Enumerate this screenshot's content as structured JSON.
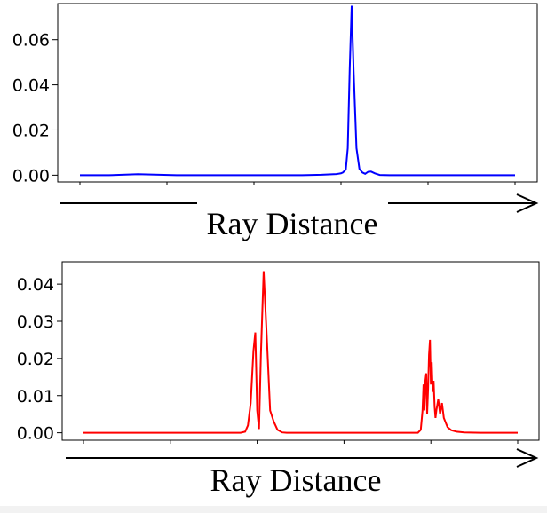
{
  "chart_data": [
    {
      "type": "line",
      "xlabel": "Ray Distance",
      "ylabel": "",
      "x_ticks_labeled": false,
      "ylim": [
        -0.003,
        0.076
      ],
      "y_ticks": [
        "0.00",
        "0.02",
        "0.04",
        "0.06"
      ],
      "series": [
        {
          "color": "#0000ff",
          "x": [
            0,
            30,
            60,
            100,
            150,
            200,
            230,
            250,
            265,
            270,
            272,
            275,
            277,
            279,
            281,
            283,
            286,
            289,
            292,
            295,
            298,
            301,
            305,
            310,
            320,
            340,
            380,
            420,
            450
          ],
          "values": [
            0.0,
            0.0,
            0.0004,
            0.0,
            0.0,
            0.0,
            0.0,
            0.0002,
            0.0005,
            0.0008,
            0.0012,
            0.0025,
            0.012,
            0.047,
            0.075,
            0.046,
            0.012,
            0.0028,
            0.0012,
            0.0006,
            0.0015,
            0.0016,
            0.0008,
            0.0001,
            0.0,
            0.0,
            0.0,
            0.0,
            0.0
          ]
        }
      ]
    },
    {
      "type": "line",
      "xlabel": "Ray Distance",
      "ylabel": "",
      "x_ticks_labeled": false,
      "ylim": [
        -0.002,
        0.046
      ],
      "y_ticks": [
        "0.00",
        "0.01",
        "0.02",
        "0.03",
        "0.04"
      ],
      "series": [
        {
          "color": "#ff0000",
          "x": [
            0,
            50,
            100,
            150,
            170,
            175,
            178,
            181,
            184,
            186,
            188,
            190,
            192,
            195,
            198,
            202,
            206,
            210,
            215,
            220,
            250,
            280,
            310,
            340,
            362,
            365,
            367,
            368,
            369,
            370,
            371,
            372,
            373,
            374,
            375,
            376,
            377,
            378,
            379,
            380,
            381,
            382,
            384,
            386,
            388,
            390,
            394,
            398,
            404,
            412,
            430,
            470
          ],
          "values": [
            0.0,
            0.0,
            0.0,
            0.0,
            0.0,
            0.0003,
            0.002,
            0.008,
            0.022,
            0.027,
            0.006,
            0.001,
            0.021,
            0.0435,
            0.028,
            0.006,
            0.003,
            0.0008,
            0.0001,
            0.0,
            0.0,
            0.0,
            0.0,
            0.0,
            0.0,
            0.0008,
            0.006,
            0.013,
            0.006,
            0.014,
            0.016,
            0.005,
            0.012,
            0.021,
            0.025,
            0.013,
            0.019,
            0.011,
            0.014,
            0.007,
            0.004,
            0.006,
            0.009,
            0.005,
            0.008,
            0.004,
            0.0015,
            0.0007,
            0.0003,
            0.0001,
            0.0,
            0.0
          ]
        }
      ]
    }
  ]
}
